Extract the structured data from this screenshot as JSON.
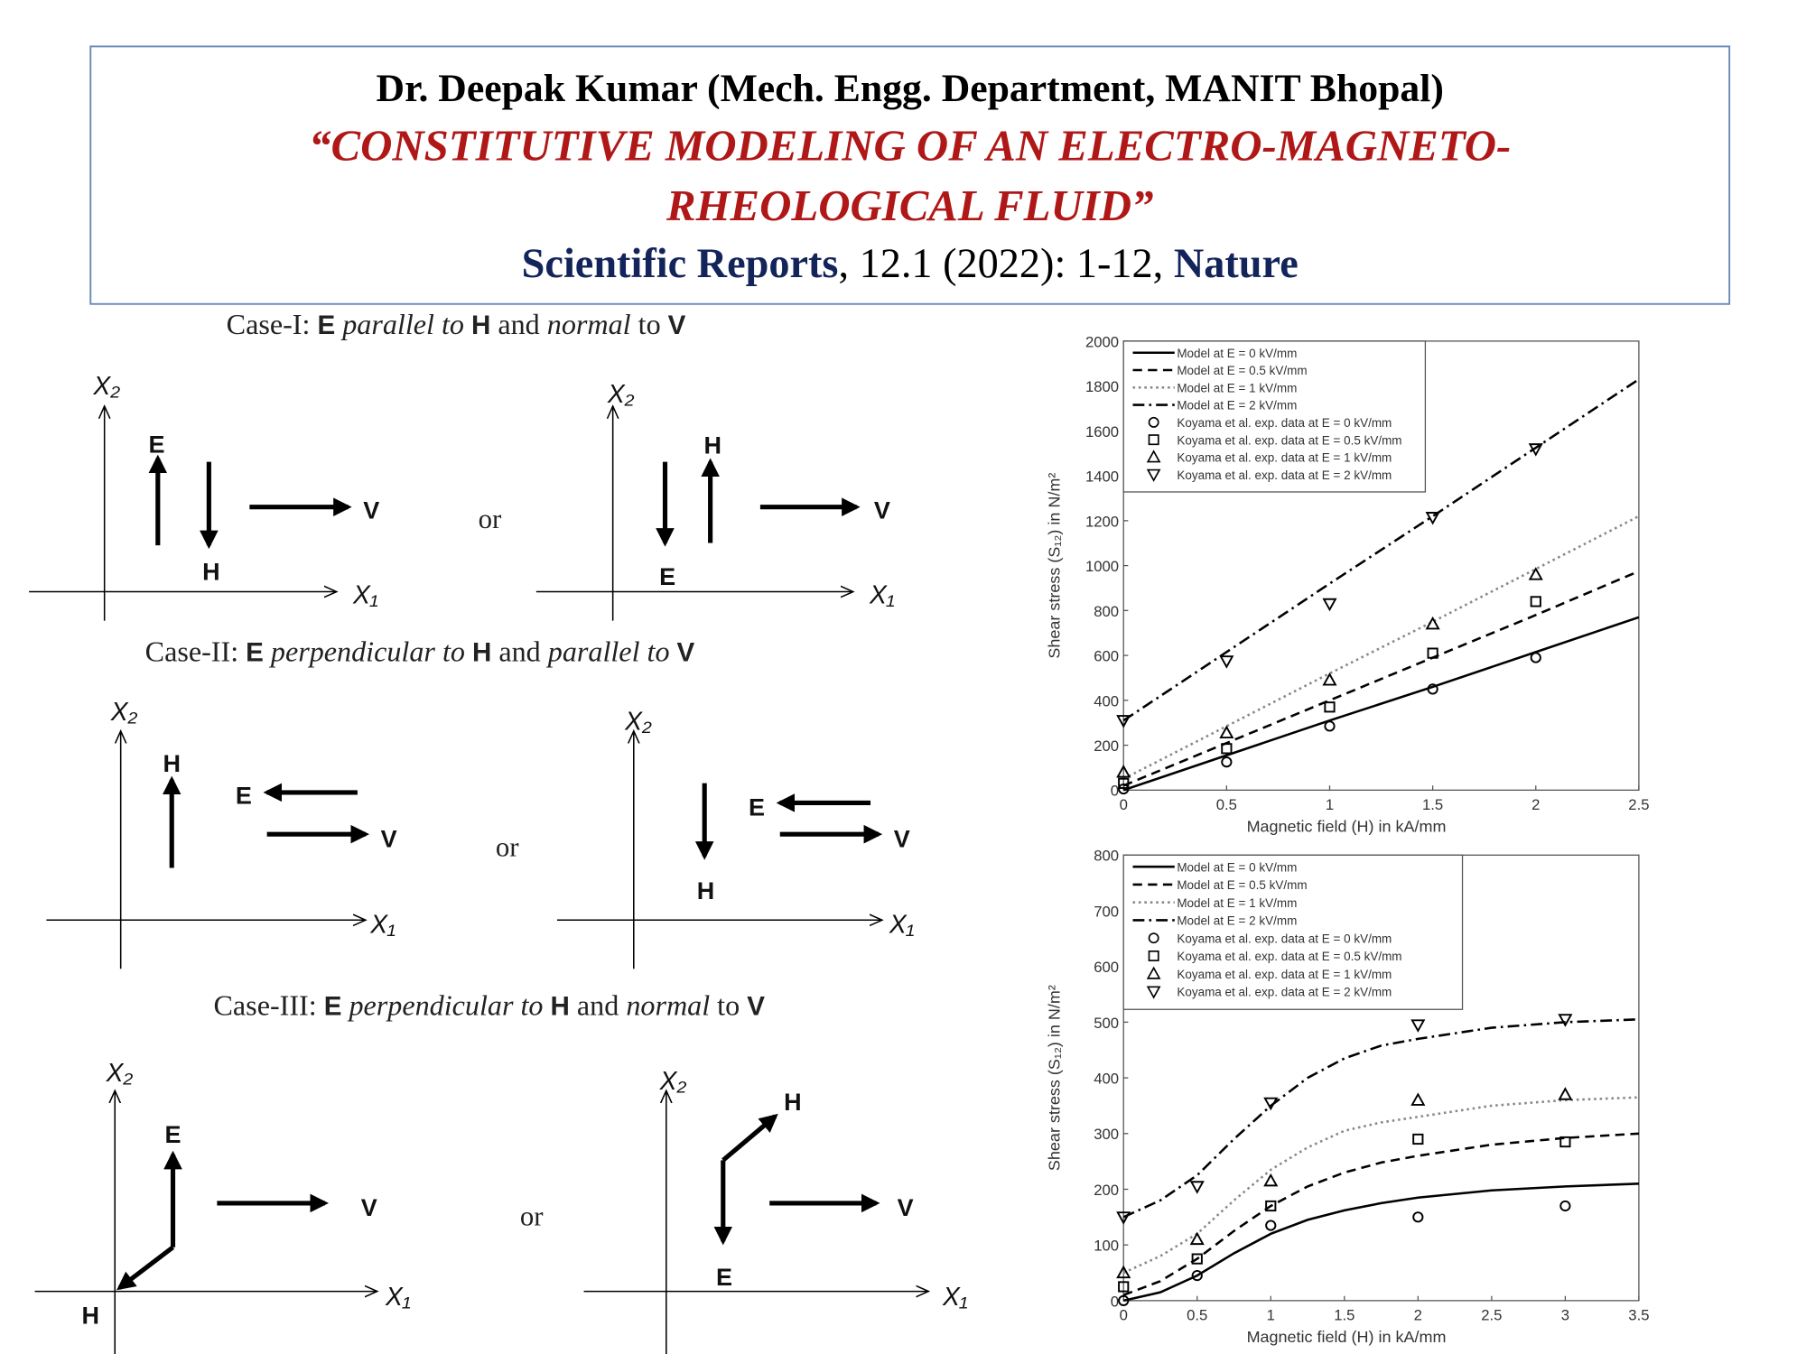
{
  "header": {
    "author": "Dr. Deepak Kumar (Mech. Engg. Department, MANIT Bhopal)",
    "title_line1": "“CONSTITUTIVE MODELING OF AN ELECTRO-MAGNETO-",
    "title_line2": "RHEOLOGICAL FLUID”",
    "citation": [
      "Scientific Reports",
      ", 12.1 (2022): 1-12, ",
      "Nature"
    ]
  },
  "cases": [
    {
      "title": [
        "Case-I: ",
        "E",
        " parallel to ",
        "H",
        " and ",
        "normal",
        " to ",
        "V"
      ],
      "or": "or",
      "diagrams": [
        {
          "x2": "X₂",
          "x1": "X₁",
          "e": "E",
          "h": "H",
          "v": "V"
        },
        {
          "x2": "X₂",
          "x1": "X₁",
          "e": "E",
          "h": "H",
          "v": "V"
        }
      ]
    },
    {
      "title": [
        "Case-II: ",
        "E",
        " perpendicular to ",
        "H",
        " and ",
        "parallel to ",
        "V"
      ],
      "or": "or",
      "diagrams": [
        {
          "x2": "X₂",
          "x1": "X₁",
          "e": "E",
          "h": "H",
          "v": "V"
        },
        {
          "x2": "X₂",
          "x1": "X₁",
          "e": "E",
          "h": "H",
          "v": "V"
        }
      ]
    },
    {
      "title": [
        "Case-III: ",
        "E",
        " perpendicular to ",
        "H",
        " and ",
        "normal",
        " to ",
        "V"
      ],
      "or": "or",
      "diagrams": [
        {
          "x2": "X₂",
          "x1": "X₁",
          "e": "E",
          "h": "H",
          "v": "V"
        },
        {
          "x2": "X₂",
          "x1": "X₁",
          "e": "E",
          "h": "H",
          "v": "V"
        }
      ]
    }
  ],
  "chart_data": [
    {
      "type": "line",
      "xlabel": "Magnetic field (H) in kA/mm",
      "ylabel": "Shear stress (S₁₂) in N/m²",
      "xlim": [
        0,
        2.5
      ],
      "ylim": [
        0,
        2000
      ],
      "xticks": [
        0,
        0.5,
        1,
        1.5,
        2,
        2.5
      ],
      "yticks": [
        0,
        200,
        400,
        600,
        800,
        1000,
        1200,
        1400,
        1600,
        1800,
        2000
      ],
      "series": [
        {
          "name": "Model at E = 0 kV/mm",
          "color": "#000000",
          "style": "solid",
          "x": [
            0,
            0.5,
            1,
            1.5,
            2,
            2.5
          ],
          "values": [
            0,
            155,
            310,
            460,
            615,
            770
          ]
        },
        {
          "name": "Model at E = 0.5 kV/mm",
          "color": "#000000",
          "style": "dashed",
          "x": [
            0,
            0.5,
            1,
            1.5,
            2,
            2.5
          ],
          "values": [
            20,
            210,
            400,
            590,
            780,
            975
          ]
        },
        {
          "name": "Model at E = 1 kV/mm",
          "color": "#888888",
          "style": "dotted",
          "x": [
            0,
            0.5,
            1,
            1.5,
            2,
            2.5
          ],
          "values": [
            50,
            285,
            520,
            750,
            985,
            1220
          ]
        },
        {
          "name": "Model at E = 2 kV/mm",
          "color": "#000000",
          "style": "dashdot",
          "x": [
            0,
            0.5,
            1,
            1.5,
            2,
            2.5
          ],
          "values": [
            310,
            615,
            920,
            1220,
            1525,
            1830
          ]
        },
        {
          "name": "Koyama et al. exp. data at E = 0 kV/mm",
          "color": "#000000",
          "marker": "o",
          "x": [
            0,
            0.5,
            1,
            1.5,
            2
          ],
          "values": [
            5,
            125,
            285,
            450,
            590
          ]
        },
        {
          "name": "Koyama et al. exp. data at E = 0.5 kV/mm",
          "color": "#000000",
          "marker": "s",
          "x": [
            0,
            0.5,
            1,
            1.5,
            2
          ],
          "values": [
            30,
            185,
            370,
            610,
            840
          ]
        },
        {
          "name": "Koyama et al. exp. data at E = 1 kV/mm",
          "color": "#000000",
          "marker": "^",
          "x": [
            0,
            0.5,
            1,
            1.5,
            2
          ],
          "values": [
            80,
            255,
            490,
            740,
            960
          ]
        },
        {
          "name": "Koyama et al. exp. data at E = 2 kV/mm",
          "color": "#000000",
          "marker": "v",
          "x": [
            0,
            0.5,
            1,
            1.5,
            2
          ],
          "values": [
            310,
            575,
            830,
            1215,
            1520
          ]
        }
      ]
    },
    {
      "type": "line",
      "xlabel": "Magnetic field (H) in kA/mm",
      "ylabel": "Shear stress (S₁₂) in N/m²",
      "xlim": [
        0,
        3.5
      ],
      "ylim": [
        0,
        800
      ],
      "xticks": [
        0,
        0.5,
        1,
        1.5,
        2,
        2.5,
        3,
        3.5
      ],
      "yticks": [
        0,
        100,
        200,
        300,
        400,
        500,
        600,
        700,
        800
      ],
      "series": [
        {
          "name": "Model at E = 0 kV/mm",
          "color": "#000000",
          "style": "solid",
          "x": [
            0,
            0.25,
            0.5,
            0.75,
            1,
            1.25,
            1.5,
            1.75,
            2,
            2.5,
            3,
            3.5
          ],
          "values": [
            0,
            15,
            45,
            85,
            120,
            145,
            162,
            175,
            185,
            198,
            205,
            210
          ]
        },
        {
          "name": "Model at E = 0.5 kV/mm",
          "color": "#000000",
          "style": "dashed",
          "x": [
            0,
            0.25,
            0.5,
            0.75,
            1,
            1.25,
            1.5,
            1.75,
            2,
            2.5,
            3,
            3.5
          ],
          "values": [
            10,
            35,
            75,
            125,
            170,
            205,
            230,
            248,
            260,
            280,
            292,
            300
          ]
        },
        {
          "name": "Model at E = 1 kV/mm",
          "color": "#888888",
          "style": "dotted",
          "x": [
            0,
            0.25,
            0.5,
            0.75,
            1,
            1.25,
            1.5,
            1.75,
            2,
            2.5,
            3,
            3.5
          ],
          "values": [
            50,
            80,
            120,
            180,
            235,
            275,
            305,
            320,
            330,
            350,
            360,
            365
          ]
        },
        {
          "name": "Model at E = 2 kV/mm",
          "color": "#000000",
          "style": "dashdot",
          "x": [
            0,
            0.25,
            0.5,
            0.75,
            1,
            1.25,
            1.5,
            1.75,
            2,
            2.5,
            3,
            3.5
          ],
          "values": [
            150,
            180,
            225,
            290,
            350,
            400,
            435,
            458,
            470,
            490,
            500,
            505
          ]
        },
        {
          "name": "Koyama et al. exp. data at E = 0 kV/mm",
          "color": "#000000",
          "marker": "o",
          "x": [
            0,
            0.5,
            1,
            2,
            3
          ],
          "values": [
            0,
            45,
            135,
            150,
            170
          ]
        },
        {
          "name": "Koyama et al. exp. data at E = 0.5 kV/mm",
          "color": "#000000",
          "marker": "s",
          "x": [
            0,
            0.5,
            1,
            2,
            3
          ],
          "values": [
            25,
            75,
            170,
            290,
            285
          ]
        },
        {
          "name": "Koyama et al. exp. data at E = 1 kV/mm",
          "color": "#000000",
          "marker": "^",
          "x": [
            0,
            0.5,
            1,
            2,
            3
          ],
          "values": [
            50,
            110,
            215,
            360,
            370
          ]
        },
        {
          "name": "Koyama et al. exp. data at E = 2 kV/mm",
          "color": "#000000",
          "marker": "v",
          "x": [
            0,
            0.5,
            1,
            2,
            3
          ],
          "values": [
            150,
            205,
            355,
            495,
            505
          ]
        }
      ]
    }
  ]
}
